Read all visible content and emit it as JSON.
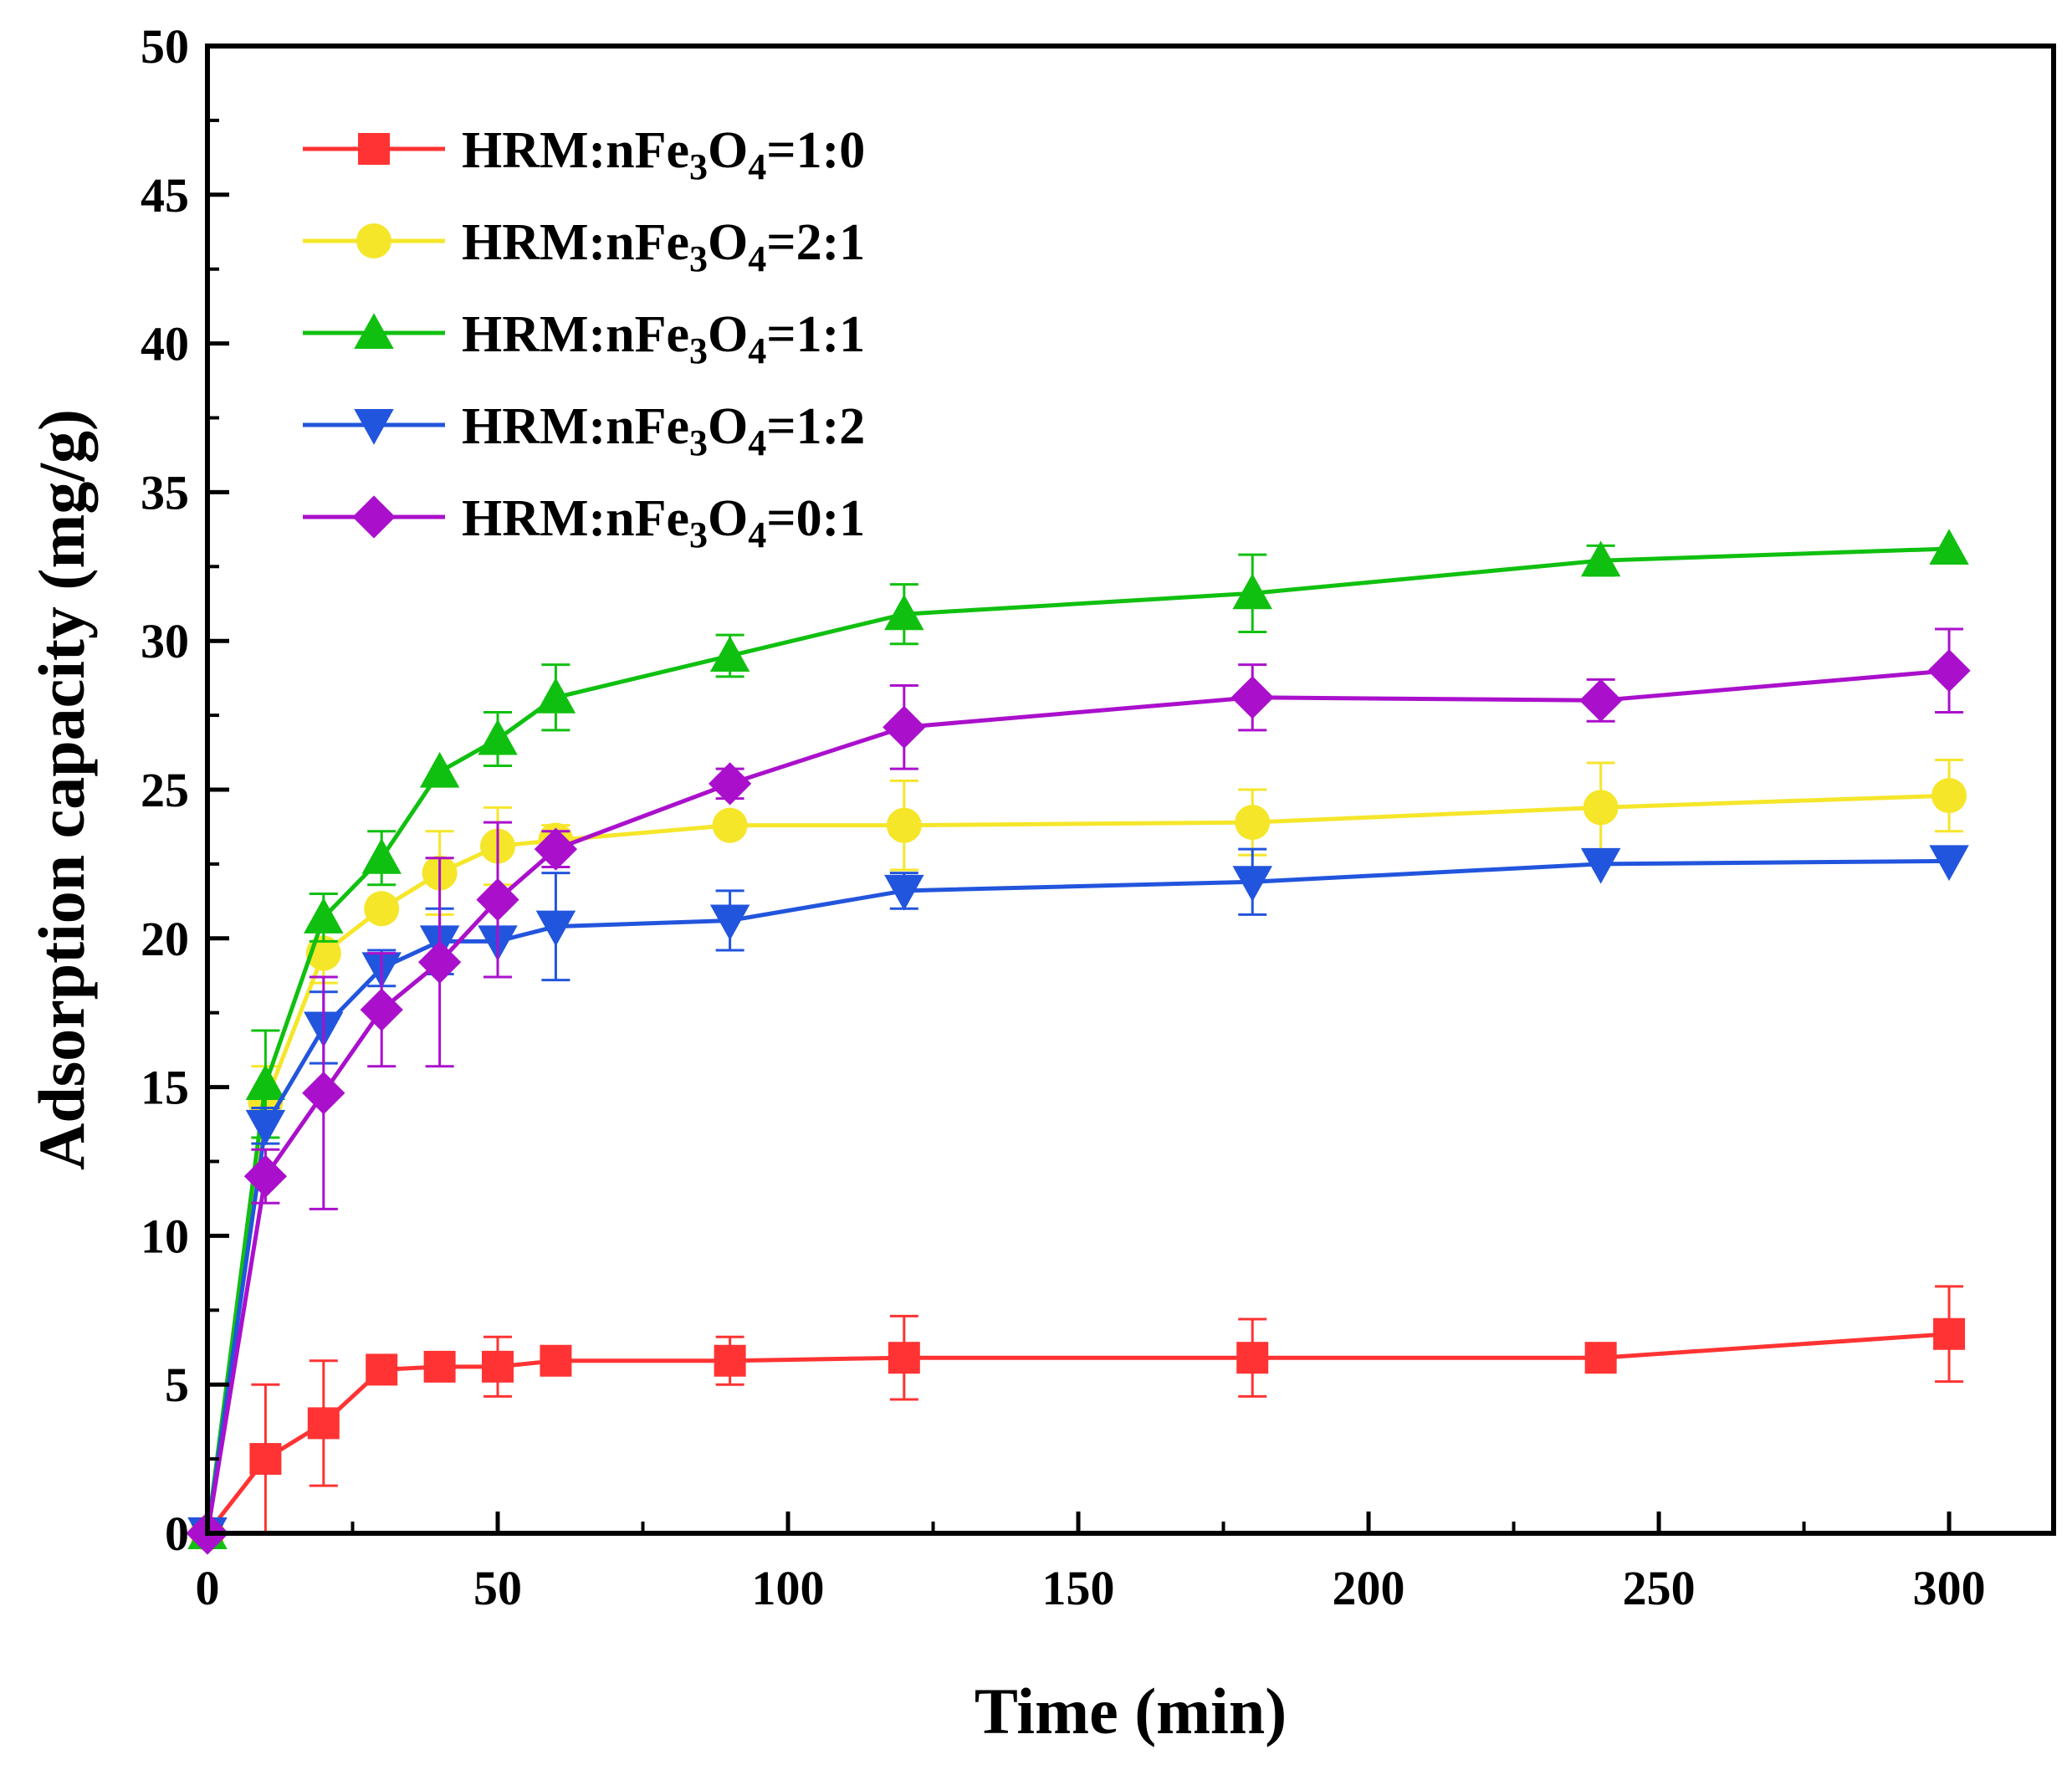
{
  "chart_data": {
    "type": "line",
    "title": "",
    "xlabel": "Time (min)",
    "ylabel": "Adsorption capacity (mg/g)",
    "xlim": [
      0,
      318
    ],
    "ylim": [
      0,
      50
    ],
    "xticks": [
      0,
      50,
      100,
      150,
      200,
      250,
      300
    ],
    "yticks": [
      0,
      5,
      10,
      15,
      20,
      25,
      30,
      35,
      40,
      45,
      50
    ],
    "xtick_labels": [
      "0",
      "50",
      "100",
      "150",
      "200",
      "250",
      "300"
    ],
    "ytick_labels": [
      "0",
      "5",
      "10",
      "15",
      "20",
      "25",
      "30",
      "35",
      "40",
      "45",
      "50"
    ],
    "grid": false,
    "legend_position": "top-left",
    "x": [
      0,
      10,
      20,
      30,
      40,
      50,
      60,
      90,
      120,
      180,
      240,
      300
    ],
    "series": [
      {
        "name": "HRM:nFe3O4=1:0",
        "legend": {
          "prefix": "HRM:nFe",
          "sub1": "3",
          "mid": "O",
          "sub2": "4",
          "suffix": "=1:0"
        },
        "color": "#ff3333",
        "marker": "square",
        "values": [
          0,
          2.5,
          3.7,
          5.5,
          5.6,
          5.6,
          5.8,
          5.8,
          5.9,
          5.9,
          5.9,
          6.7
        ],
        "errors": [
          0,
          2.5,
          2.1,
          0,
          0,
          1.0,
          0,
          0.8,
          1.4,
          1.3,
          0,
          1.6
        ]
      },
      {
        "name": "HRM:nFe3O4=2:1",
        "legend": {
          "prefix": "HRM:nFe",
          "sub1": "3",
          "mid": "O",
          "sub2": "4",
          "suffix": "=2:1"
        },
        "color": "#f5e62a",
        "marker": "circle",
        "values": [
          0,
          14.5,
          19.5,
          21.0,
          22.2,
          23.1,
          23.3,
          23.8,
          23.8,
          23.9,
          24.4,
          24.8
        ],
        "errors": [
          0,
          1.2,
          1.0,
          0,
          1.4,
          1.3,
          0.5,
          0,
          1.5,
          1.1,
          1.5,
          1.2
        ]
      },
      {
        "name": "HRM:nFe3O4=1:1",
        "legend": {
          "prefix": "HRM:nFe",
          "sub1": "3",
          "mid": "O",
          "sub2": "4",
          "suffix": "=1:1"
        },
        "color": "#10c010",
        "marker": "triangle-up",
        "values": [
          0,
          15.1,
          20.7,
          22.7,
          25.6,
          26.7,
          28.1,
          29.5,
          30.9,
          31.6,
          32.7,
          33.1
        ],
        "errors": [
          0,
          1.8,
          0.8,
          0.9,
          0,
          0.9,
          1.1,
          0.7,
          1.0,
          1.3,
          0.5,
          0
        ]
      },
      {
        "name": "HRM:nFe3O4=1:2",
        "legend": {
          "prefix": "HRM:nFe",
          "sub1": "3",
          "mid": "O",
          "sub2": "4",
          "suffix": "=1:2"
        },
        "color": "#2255dd",
        "marker": "triangle-down",
        "values": [
          0,
          13.7,
          17.0,
          19.0,
          19.9,
          19.9,
          20.4,
          20.6,
          21.6,
          21.9,
          22.5,
          22.6
        ],
        "errors": [
          0,
          0.6,
          1.2,
          0.6,
          1.1,
          1.2,
          1.8,
          1.0,
          0.6,
          1.1,
          0,
          0
        ]
      },
      {
        "name": "HRM:nFe3O4=0:1",
        "legend": {
          "prefix": "HRM:nFe",
          "sub1": "3",
          "mid": "O",
          "sub2": "4",
          "suffix": "=0:1"
        },
        "color": "#aa10cc",
        "marker": "diamond",
        "values": [
          0,
          12.0,
          14.8,
          17.6,
          19.2,
          21.3,
          23.0,
          25.2,
          27.1,
          28.1,
          28.0,
          29.0
        ],
        "errors": [
          0,
          0.9,
          3.9,
          1.9,
          3.5,
          2.6,
          0.6,
          0.5,
          1.4,
          1.1,
          0.7,
          1.4
        ]
      }
    ]
  }
}
